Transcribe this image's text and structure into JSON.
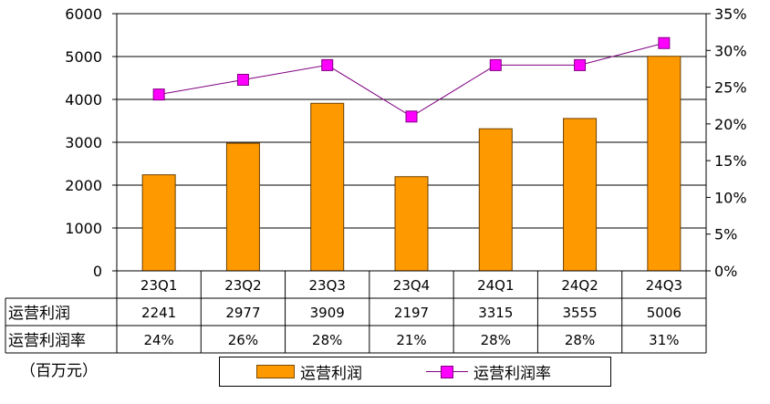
{
  "chart_data": {
    "type": "bar+line",
    "categories": [
      "23Q1",
      "23Q2",
      "23Q3",
      "23Q4",
      "24Q1",
      "24Q2",
      "24Q3"
    ],
    "series": [
      {
        "name": "运营利润",
        "type": "bar",
        "axis": "left",
        "values": [
          2241,
          2977,
          3909,
          2197,
          3315,
          3555,
          5006
        ],
        "color": "#FF9900"
      },
      {
        "name": "运营利润率",
        "type": "line",
        "axis": "right",
        "values": [
          0.24,
          0.26,
          0.28,
          0.21,
          0.28,
          0.28,
          0.31
        ],
        "color": "#800080",
        "marker_color": "#FF00FF"
      }
    ],
    "y_left": {
      "range": [
        0,
        6000
      ],
      "ticks": [
        "0",
        "1000",
        "2000",
        "3000",
        "4000",
        "5000",
        "6000"
      ]
    },
    "y_right": {
      "range": [
        0,
        0.35
      ],
      "ticks": [
        "0%",
        "5%",
        "10%",
        "15%",
        "20%",
        "25%",
        "30%",
        "35%"
      ]
    },
    "grid": "horizontal",
    "legend_position": "bottom",
    "table": {
      "rows": [
        {
          "label": "运营利润",
          "cells": [
            "2241",
            "2977",
            "3909",
            "2197",
            "3315",
            "3555",
            "5006"
          ]
        },
        {
          "label": "运营利润率",
          "cells": [
            "24%",
            "26%",
            "28%",
            "21%",
            "28%",
            "28%",
            "31%"
          ]
        }
      ]
    },
    "unit": "（百万元）"
  }
}
